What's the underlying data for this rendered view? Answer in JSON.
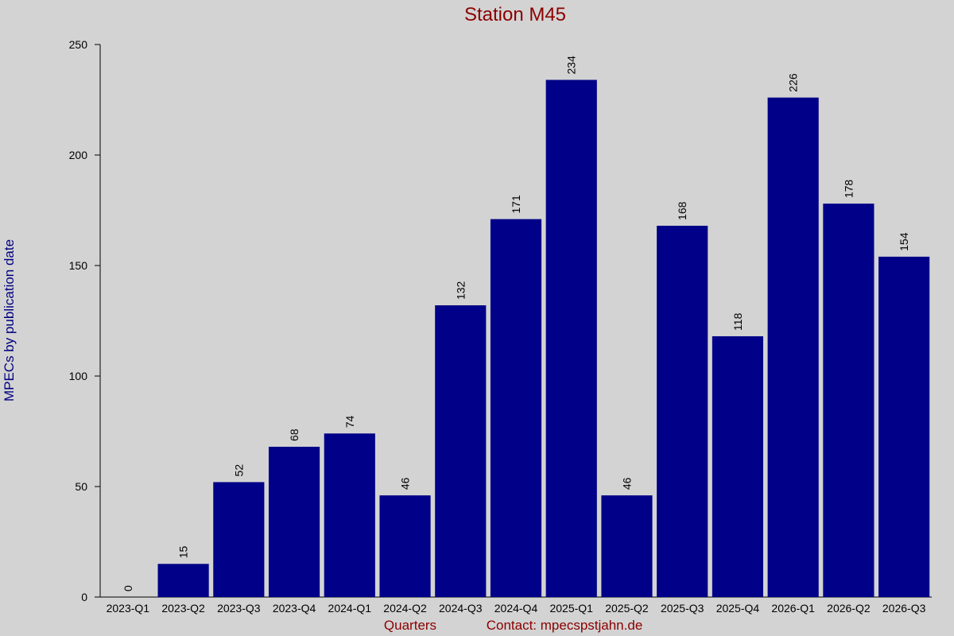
{
  "chart_data": {
    "type": "bar",
    "title": "Station M45",
    "y_label": "MPECs by publication date",
    "x_label": "Quarters",
    "note": "Contact: mpecspstjahn.de",
    "categories": [
      "2023-Q1",
      "2023-Q2",
      "2023-Q3",
      "2023-Q4",
      "2024-Q1",
      "2024-Q2",
      "2024-Q3",
      "2024-Q4",
      "2025-Q1",
      "2025-Q2",
      "2025-Q3",
      "2025-Q4",
      "2026-Q1",
      "2026-Q2",
      "2026-Q3"
    ],
    "values": [
      0,
      15,
      52,
      68,
      74,
      46,
      132,
      171,
      234,
      46,
      168,
      118,
      226,
      178,
      154
    ],
    "color": "#000088",
    "ylim": [
      0,
      250
    ],
    "yticks": [
      0,
      50,
      100,
      150,
      200,
      250
    ]
  }
}
